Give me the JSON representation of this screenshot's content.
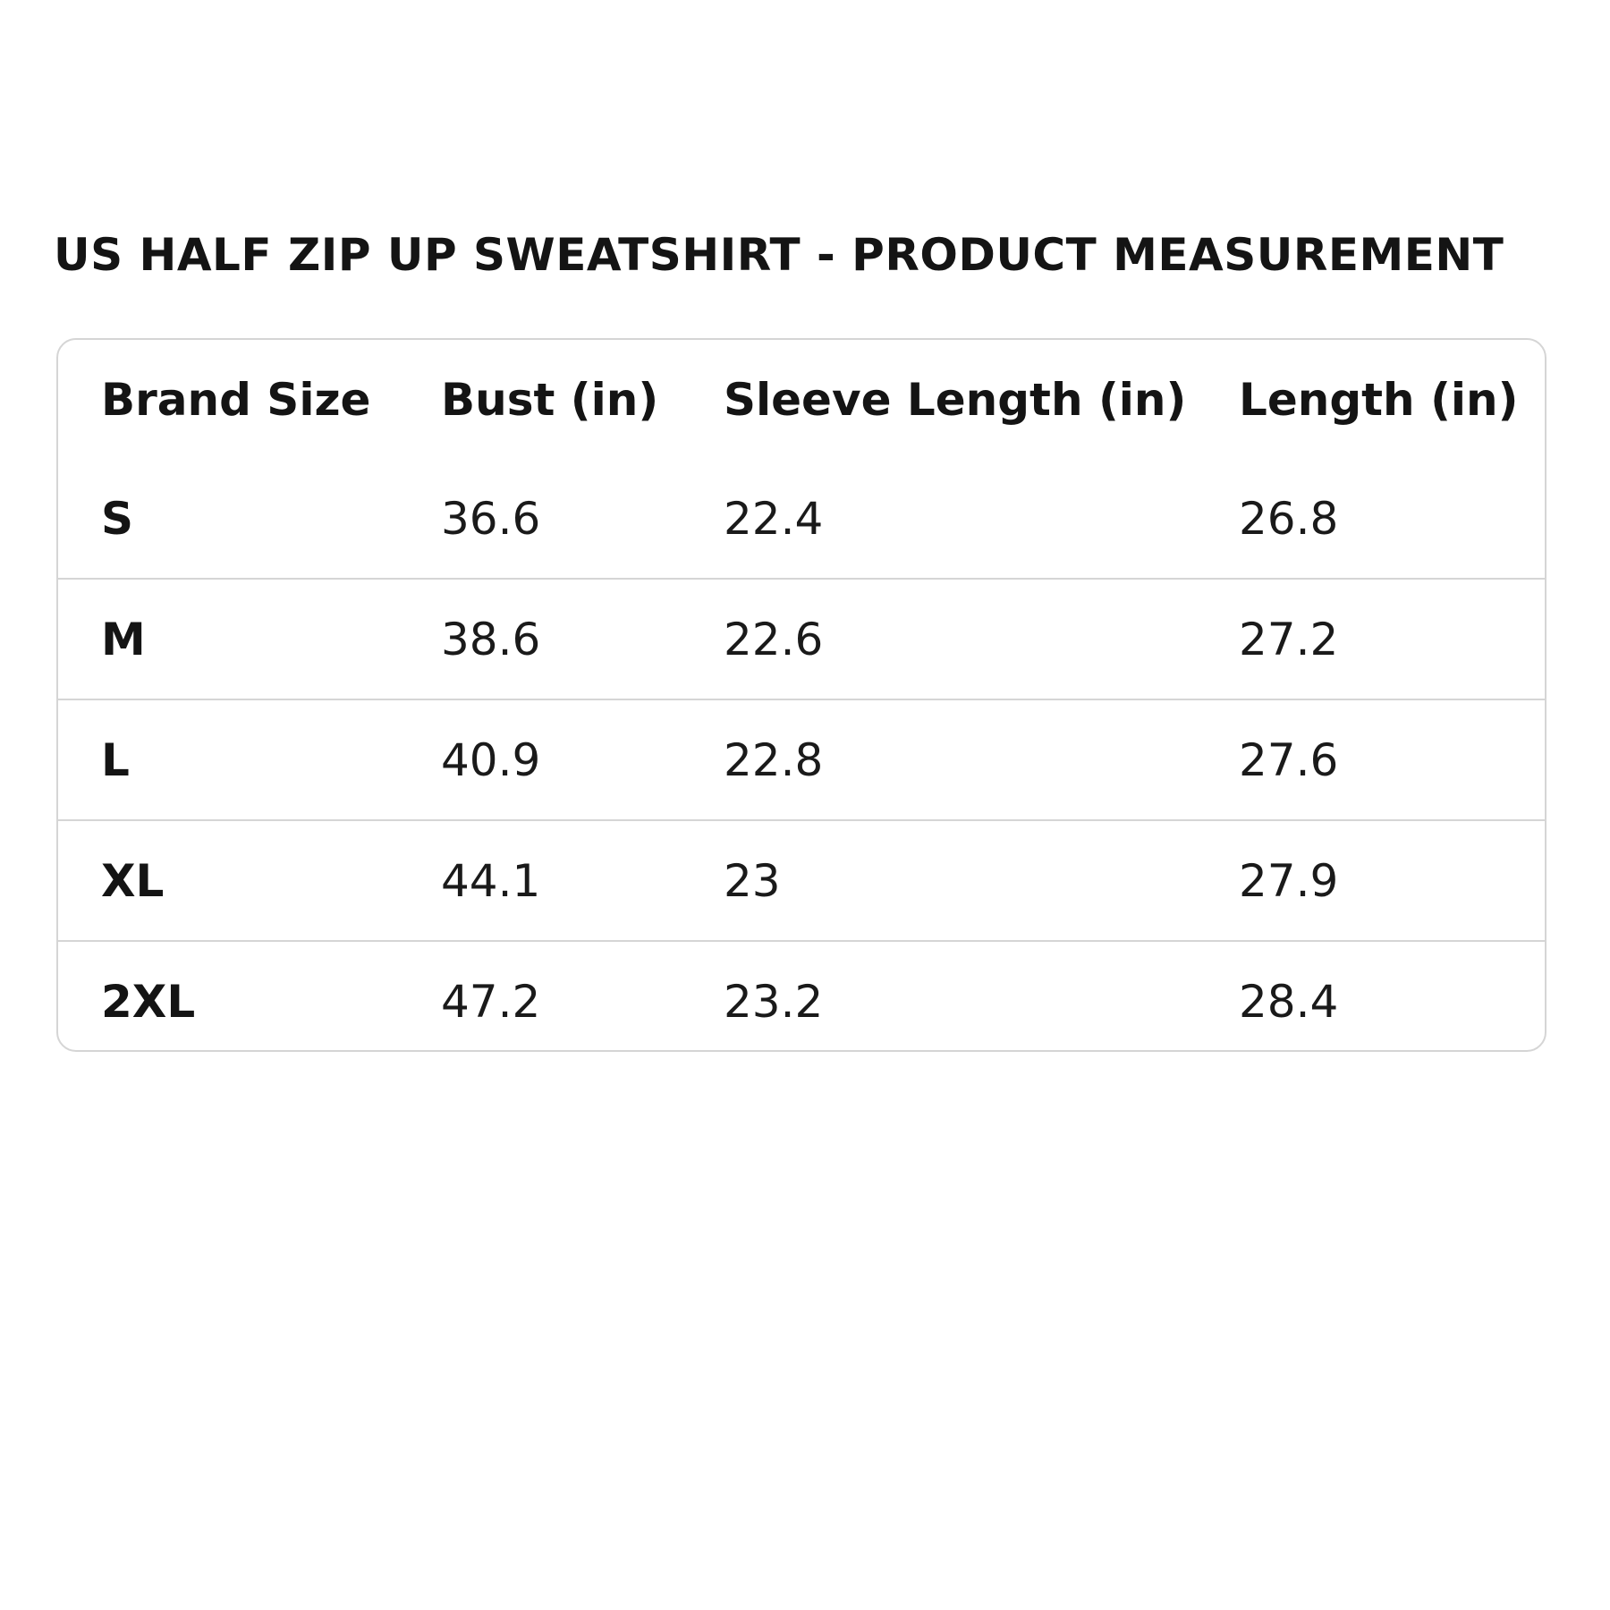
{
  "title": "US HALF ZIP UP SWEATSHIRT - PRODUCT MEASUREMENT",
  "table": {
    "headers": [
      "Brand Size",
      "Bust (in)",
      "Sleeve Length (in)",
      "Length (in)"
    ],
    "rows": [
      [
        "S",
        "36.6",
        "22.4",
        "26.8"
      ],
      [
        "M",
        "38.6",
        "22.6",
        "27.2"
      ],
      [
        "L",
        "40.9",
        "22.8",
        "27.6"
      ],
      [
        "XL",
        "44.1",
        "23",
        "27.9"
      ],
      [
        "2XL",
        "47.2",
        "23.2",
        "28.4"
      ]
    ]
  },
  "colors": {
    "border": "#d5d5d5",
    "text": "#141414",
    "background": "#ffffff"
  }
}
